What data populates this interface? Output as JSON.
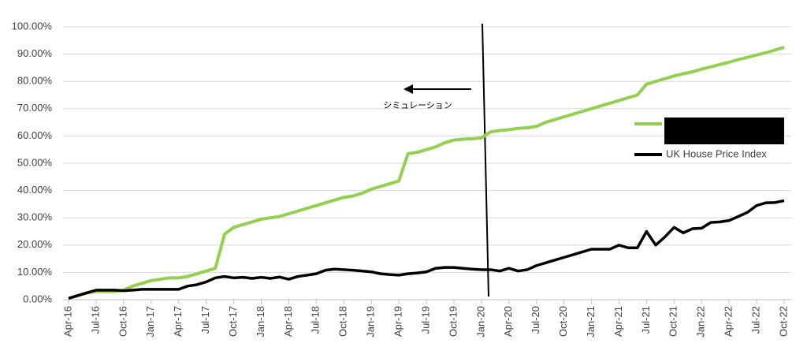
{
  "chart_data": {
    "type": "line",
    "categories": [
      "Apr-16",
      null,
      null,
      "Jul-16",
      null,
      null,
      "Oct-16",
      null,
      null,
      "Jan-17",
      null,
      null,
      "Apr-17",
      null,
      null,
      "Jul-17",
      null,
      null,
      "Oct-17",
      null,
      null,
      "Jan-18",
      null,
      null,
      "Apr-18",
      null,
      null,
      "Jul-18",
      null,
      null,
      "Oct-18",
      null,
      null,
      "Jan-19",
      null,
      null,
      "Apr-19",
      null,
      null,
      "Jul-19",
      null,
      null,
      "Oct-19",
      null,
      null,
      "Jan-20",
      null,
      null,
      "Apr-20",
      null,
      null,
      "Jul-20",
      null,
      null,
      "Oct-20",
      null,
      null,
      "Jan-21",
      null,
      null,
      "Apr-21",
      null,
      null,
      "Jul-21",
      null,
      null,
      "Oct-21",
      null,
      null,
      "Jan-22",
      null,
      null,
      "Apr-22",
      null,
      null,
      "Jul-22",
      null,
      null,
      "Oct-22"
    ],
    "series": [
      {
        "color": "#92d050",
        "values": [
          0.5,
          1.5,
          2.5,
          3,
          3,
          3,
          3.5,
          5,
          6,
          7,
          7.5,
          8,
          8,
          8.5,
          9.5,
          10.5,
          11.5,
          24,
          26.5,
          27.5,
          28.5,
          29.5,
          30,
          30.5,
          31.5,
          32.5,
          33.5,
          34.5,
          35.5,
          36.5,
          37.5,
          38,
          39,
          40.5,
          41.5,
          42.5,
          43.5,
          53.5,
          54,
          55,
          56,
          57.5,
          58.5,
          58.8,
          59,
          59.3,
          61.5,
          62,
          62.3,
          62.8,
          63,
          63.5,
          65,
          66,
          67,
          68,
          69,
          70,
          71,
          72,
          73,
          74,
          75,
          79,
          80,
          81,
          82,
          82.8,
          83.5,
          84.5,
          85.3,
          86.2,
          87,
          88,
          88.8,
          89.7,
          90.5,
          91.5,
          92.5
        ]
      },
      {
        "name": "UK House Price Index",
        "color": "#000000",
        "values": [
          0.5,
          1.5,
          2.5,
          3.5,
          3.5,
          3.5,
          3.3,
          3.5,
          3.8,
          3.8,
          3.8,
          3.8,
          3.8,
          5,
          5.5,
          6.5,
          8,
          8.5,
          8,
          8.2,
          7.8,
          8.2,
          7.8,
          8.3,
          7.5,
          8.5,
          9,
          9.5,
          10.8,
          11.2,
          11,
          10.8,
          10.5,
          10.2,
          9.5,
          9.2,
          9,
          9.5,
          9.8,
          10.2,
          11.5,
          11.8,
          11.8,
          11.5,
          11.2,
          11,
          11,
          10.5,
          11.5,
          10.5,
          11,
          12.5,
          13.5,
          14.5,
          15.5,
          16.5,
          17.5,
          18.5,
          18.5,
          18.5,
          20,
          19,
          19,
          25,
          20,
          23,
          26.5,
          24.5,
          26,
          26.2,
          28.3,
          28.5,
          29,
          30.5,
          32,
          34.5,
          35.5,
          35.6,
          36.3
        ]
      }
    ],
    "ylim": [
      0,
      100
    ],
    "yticks": [
      {
        "value": 0,
        "label": "0.00%"
      },
      {
        "value": 10,
        "label": "10.00%"
      },
      {
        "value": 20,
        "label": "20.00%"
      },
      {
        "value": 30,
        "label": "30.00%"
      },
      {
        "value": 40,
        "label": "40.00%"
      },
      {
        "value": 50,
        "label": "50.00%"
      },
      {
        "value": 60,
        "label": "60.00%"
      },
      {
        "value": 70,
        "label": "70.00%"
      },
      {
        "value": 80,
        "label": "80.00%"
      },
      {
        "value": 90,
        "label": "90.00%"
      },
      {
        "value": 100,
        "label": "100.00%"
      }
    ],
    "grid": true,
    "annotation": "シミュレーション"
  }
}
